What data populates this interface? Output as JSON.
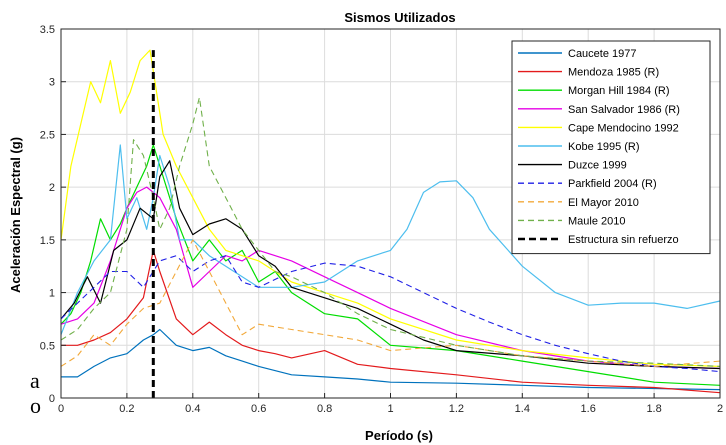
{
  "page_fragments": [
    "a",
    "o"
  ],
  "chart_data": {
    "type": "line",
    "title": "Sismos Utilizados",
    "xlabel": "Período (s)",
    "ylabel": "Aceleración Espectral (g)",
    "xlim": [
      0,
      2
    ],
    "ylim": [
      0,
      3.5
    ],
    "xticks": [
      "0",
      "0.2",
      "0.4",
      "0.6",
      "0.8",
      "1",
      "1.2",
      "1.4",
      "1.6",
      "1.8",
      "2"
    ],
    "yticks": [
      "0",
      "0.5",
      "1",
      "1.5",
      "2",
      "2.5",
      "3",
      "3.5"
    ],
    "grid": true,
    "legend_position": "top-right",
    "series": [
      {
        "name": "Caucete 1977",
        "color": "#0072BD",
        "style": "solid",
        "x": [
          0,
          0.05,
          0.1,
          0.15,
          0.2,
          0.25,
          0.28,
          0.3,
          0.35,
          0.4,
          0.45,
          0.5,
          0.55,
          0.6,
          0.7,
          0.8,
          0.9,
          1.0,
          1.2,
          1.4,
          1.6,
          1.8,
          2.0
        ],
        "y": [
          0.2,
          0.2,
          0.3,
          0.38,
          0.42,
          0.55,
          0.6,
          0.65,
          0.5,
          0.45,
          0.48,
          0.4,
          0.35,
          0.3,
          0.22,
          0.2,
          0.18,
          0.15,
          0.14,
          0.12,
          0.1,
          0.09,
          0.08
        ]
      },
      {
        "name": "Mendoza 1985 (R)",
        "color": "#E31A1C",
        "style": "solid",
        "x": [
          0,
          0.05,
          0.1,
          0.15,
          0.2,
          0.25,
          0.28,
          0.3,
          0.35,
          0.4,
          0.45,
          0.5,
          0.55,
          0.6,
          0.65,
          0.7,
          0.8,
          0.9,
          1.0,
          1.2,
          1.4,
          1.6,
          1.8,
          2.0
        ],
        "y": [
          0.5,
          0.5,
          0.55,
          0.62,
          0.75,
          0.95,
          1.4,
          1.2,
          0.75,
          0.6,
          0.72,
          0.6,
          0.5,
          0.45,
          0.42,
          0.38,
          0.45,
          0.32,
          0.28,
          0.22,
          0.15,
          0.12,
          0.1,
          0.05
        ]
      },
      {
        "name": "Morgan Hill 1984 (R)",
        "color": "#00DD00",
        "style": "solid",
        "x": [
          0,
          0.03,
          0.06,
          0.09,
          0.12,
          0.15,
          0.18,
          0.2,
          0.23,
          0.26,
          0.28,
          0.31,
          0.35,
          0.4,
          0.45,
          0.5,
          0.55,
          0.6,
          0.65,
          0.7,
          0.8,
          0.9,
          1.0,
          1.2,
          1.4,
          1.6,
          1.8,
          2.0
        ],
        "y": [
          0.7,
          0.8,
          1.0,
          1.3,
          1.7,
          1.5,
          1.65,
          1.8,
          2.0,
          2.2,
          2.4,
          2.1,
          1.7,
          1.3,
          1.5,
          1.3,
          1.4,
          1.1,
          1.2,
          1.0,
          0.8,
          0.75,
          0.5,
          0.45,
          0.35,
          0.25,
          0.15,
          0.12
        ]
      },
      {
        "name": "San Salvador 1986 (R)",
        "color": "#E600E6",
        "style": "solid",
        "x": [
          0,
          0.05,
          0.1,
          0.15,
          0.2,
          0.23,
          0.26,
          0.28,
          0.3,
          0.35,
          0.4,
          0.45,
          0.5,
          0.55,
          0.6,
          0.7,
          0.8,
          0.9,
          1.0,
          1.2,
          1.4,
          1.6,
          1.8,
          2.0
        ],
        "y": [
          0.7,
          0.75,
          0.9,
          1.3,
          1.8,
          1.95,
          2.0,
          1.95,
          1.9,
          1.6,
          1.05,
          1.2,
          1.35,
          1.3,
          1.4,
          1.3,
          1.15,
          1.0,
          0.85,
          0.6,
          0.45,
          0.35,
          0.3,
          0.28
        ]
      },
      {
        "name": "Cape Mendocino 1992",
        "color": "#FFFF00",
        "style": "solid",
        "x": [
          0,
          0.03,
          0.06,
          0.09,
          0.12,
          0.15,
          0.18,
          0.21,
          0.24,
          0.27,
          0.29,
          0.31,
          0.35,
          0.4,
          0.45,
          0.5,
          0.55,
          0.6,
          0.7,
          0.8,
          0.9,
          1.0,
          1.2,
          1.4,
          1.6,
          1.8,
          2.0
        ],
        "y": [
          1.5,
          2.2,
          2.6,
          3.0,
          2.8,
          3.2,
          2.7,
          2.9,
          3.2,
          3.3,
          2.9,
          2.5,
          2.2,
          1.9,
          1.6,
          1.4,
          1.35,
          1.3,
          1.1,
          1.0,
          0.9,
          0.75,
          0.55,
          0.45,
          0.38,
          0.32,
          0.3
        ]
      },
      {
        "name": "Kobe 1995 (R)",
        "color": "#4DBEEE",
        "style": "solid",
        "x": [
          0,
          0.05,
          0.1,
          0.15,
          0.18,
          0.2,
          0.23,
          0.26,
          0.28,
          0.3,
          0.33,
          0.36,
          0.4,
          0.45,
          0.5,
          0.6,
          0.7,
          0.8,
          0.9,
          1.0,
          1.05,
          1.1,
          1.15,
          1.2,
          1.25,
          1.3,
          1.4,
          1.5,
          1.6,
          1.7,
          1.8,
          1.9,
          2.0
        ],
        "y": [
          0.6,
          1.0,
          1.3,
          1.5,
          2.4,
          1.7,
          1.9,
          1.6,
          1.9,
          2.3,
          2.0,
          1.5,
          1.5,
          1.35,
          1.25,
          1.05,
          1.05,
          1.1,
          1.3,
          1.4,
          1.6,
          1.95,
          2.05,
          2.06,
          1.9,
          1.6,
          1.25,
          1.0,
          0.88,
          0.9,
          0.9,
          0.85,
          0.92
        ]
      },
      {
        "name": "Duzce 1999",
        "color": "#000000",
        "style": "solid",
        "x": [
          0,
          0.04,
          0.08,
          0.12,
          0.16,
          0.2,
          0.24,
          0.28,
          0.3,
          0.33,
          0.36,
          0.4,
          0.45,
          0.5,
          0.55,
          0.6,
          0.65,
          0.7,
          0.8,
          0.9,
          1.0,
          1.1,
          1.2,
          1.4,
          1.6,
          1.8,
          2.0
        ],
        "y": [
          0.75,
          0.9,
          1.15,
          0.9,
          1.4,
          1.5,
          1.8,
          1.7,
          2.1,
          2.25,
          1.8,
          1.55,
          1.65,
          1.7,
          1.6,
          1.35,
          1.25,
          1.05,
          0.95,
          0.85,
          0.7,
          0.55,
          0.45,
          0.4,
          0.33,
          0.3,
          0.28
        ]
      },
      {
        "name": "Parkfield 2004 (R)",
        "color": "#1F1FE6",
        "style": "dashed",
        "x": [
          0,
          0.05,
          0.1,
          0.15,
          0.2,
          0.25,
          0.3,
          0.35,
          0.4,
          0.45,
          0.5,
          0.55,
          0.6,
          0.7,
          0.8,
          0.9,
          1.0,
          1.1,
          1.2,
          1.3,
          1.4,
          1.5,
          1.6,
          1.7,
          1.8,
          1.9,
          2.0
        ],
        "y": [
          0.75,
          0.9,
          1.05,
          1.2,
          1.2,
          1.05,
          1.3,
          1.35,
          1.2,
          1.3,
          1.35,
          1.1,
          1.05,
          1.2,
          1.28,
          1.25,
          1.15,
          1.0,
          0.85,
          0.72,
          0.6,
          0.5,
          0.42,
          0.35,
          0.3,
          0.28,
          0.25
        ]
      },
      {
        "name": "El Mayor 2010",
        "color": "#F2A93B",
        "style": "dashed",
        "x": [
          0,
          0.05,
          0.1,
          0.15,
          0.2,
          0.25,
          0.3,
          0.35,
          0.4,
          0.45,
          0.5,
          0.55,
          0.6,
          0.7,
          0.8,
          0.9,
          1.0,
          1.2,
          1.4,
          1.6,
          1.8,
          2.0
        ],
        "y": [
          0.3,
          0.4,
          0.6,
          0.5,
          0.7,
          0.85,
          0.9,
          1.2,
          1.5,
          1.2,
          0.9,
          0.6,
          0.7,
          0.65,
          0.6,
          0.55,
          0.45,
          0.5,
          0.4,
          0.35,
          0.3,
          0.35
        ]
      },
      {
        "name": "Maule 2010",
        "color": "#70B04A",
        "style": "dashed",
        "x": [
          0,
          0.05,
          0.1,
          0.15,
          0.2,
          0.22,
          0.25,
          0.28,
          0.3,
          0.33,
          0.36,
          0.4,
          0.42,
          0.45,
          0.5,
          0.55,
          0.6,
          0.65,
          0.7,
          0.8,
          0.9,
          1.0,
          1.2,
          1.4,
          1.6,
          1.8,
          2.0
        ],
        "y": [
          0.55,
          0.65,
          0.85,
          1.0,
          1.6,
          2.45,
          2.3,
          1.9,
          1.6,
          1.8,
          2.2,
          2.6,
          2.85,
          2.2,
          1.9,
          1.6,
          1.4,
          1.2,
          1.15,
          1.0,
          0.8,
          0.65,
          0.5,
          0.4,
          0.35,
          0.33,
          0.3
        ]
      },
      {
        "name": "Estructura sin refuerzo",
        "color": "#000000",
        "style": "bold-dashed",
        "x": [
          0.28,
          0.28
        ],
        "y": [
          0,
          3.3
        ]
      }
    ]
  }
}
